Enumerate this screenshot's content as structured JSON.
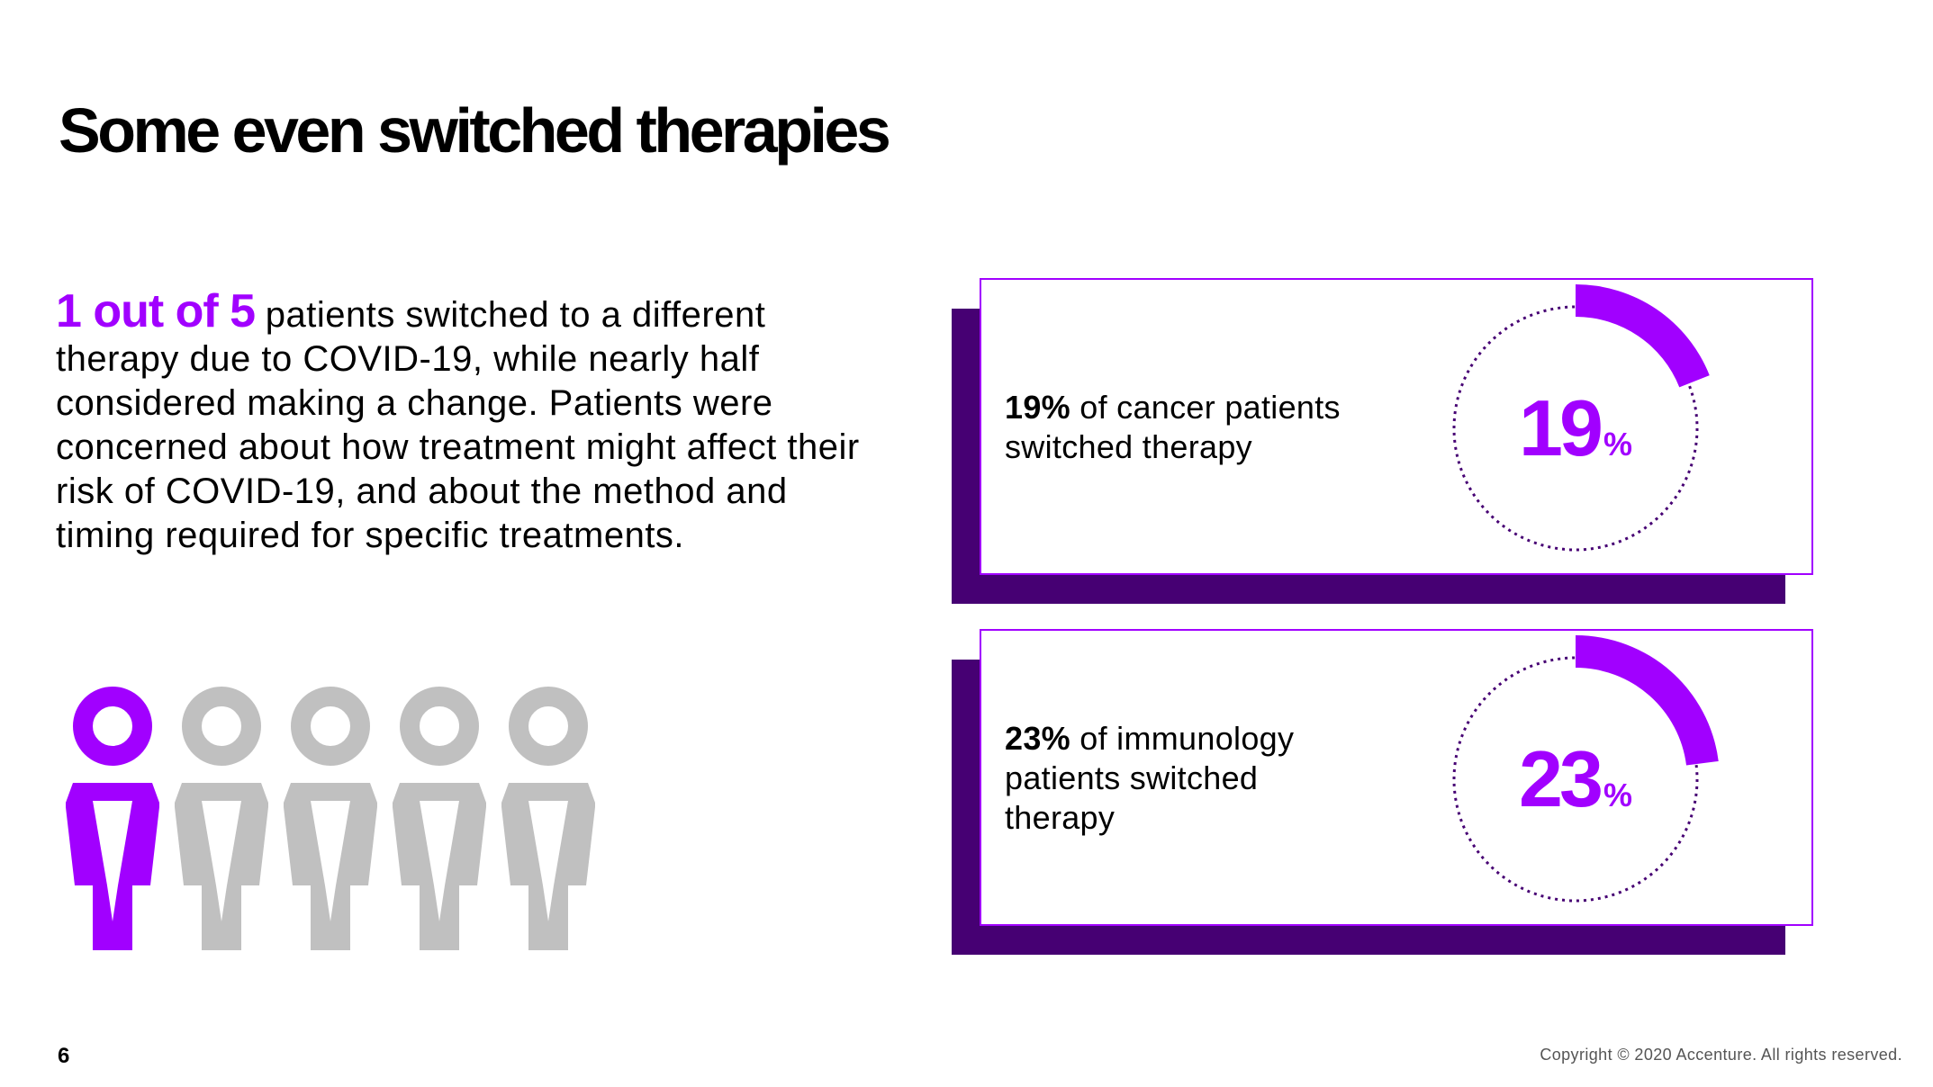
{
  "title": "Some even switched therapies",
  "intro": {
    "highlight": "1 out of 5",
    "body": " patients switched to a different therapy due to COVID-19, while nearly half considered making a change. Patients were concerned about how treatment might affect their risk of COVID-19, and about the method and timing required for specific treatments."
  },
  "people": {
    "highlighted": 1,
    "total": 5,
    "highlight_color": "#a100ff",
    "base_color": "#c0c0c0"
  },
  "stats": [
    {
      "bold": "19%",
      "text": " of cancer patients switched therapy",
      "value_number": "19",
      "value_unit": "%",
      "fraction": 0.19
    },
    {
      "bold": "23%",
      "text": " of immunology patients switched therapy",
      "value_number": "23",
      "value_unit": "%",
      "fraction": 0.23
    }
  ],
  "colors": {
    "accent": "#a100ff",
    "dark": "#460073"
  },
  "footer": {
    "page": "6",
    "copyright": "Copyright © 2020 Accenture. All rights reserved."
  }
}
